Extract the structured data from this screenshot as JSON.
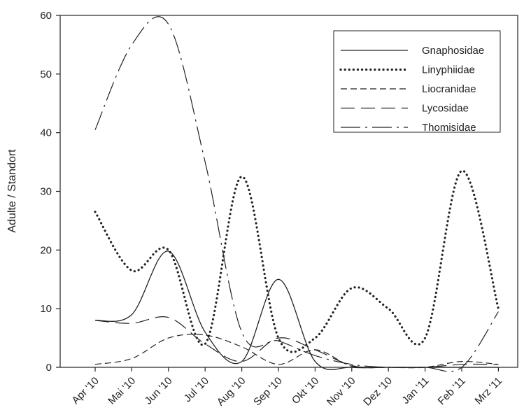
{
  "chart_data": {
    "type": "line",
    "title": "",
    "xlabel": "",
    "ylabel": "Adulte / Standort",
    "ylim": [
      0,
      60
    ],
    "yticks": [
      0,
      10,
      20,
      30,
      40,
      50,
      60
    ],
    "grid": false,
    "legend_position": "top-right",
    "categories": [
      "Apr '10",
      "Mai '10",
      "Jun '10",
      "Jul '10",
      "Aug '10",
      "Sep '10",
      "Okt '10",
      "Nov '10",
      "Dez '10",
      "Jan '11",
      "Feb '11",
      "Mrz '11"
    ],
    "series": [
      {
        "name": "Gnaphosidae",
        "style": "solid",
        "values": [
          8,
          9,
          19.8,
          6,
          1,
          15,
          1,
          0,
          0,
          0,
          0,
          0
        ]
      },
      {
        "name": "Linyphiidae",
        "style": "dotted",
        "values": [
          26.5,
          16.5,
          20,
          4,
          32.5,
          5,
          5,
          13.5,
          10,
          5,
          33.5,
          10
        ]
      },
      {
        "name": "Liocranidae",
        "style": "short-dash",
        "values": [
          0.5,
          1.5,
          5,
          5.5,
          3.5,
          0.5,
          3,
          0.2,
          0,
          0,
          1,
          0.5
        ]
      },
      {
        "name": "Lycosidae",
        "style": "long-dash",
        "values": [
          8,
          7.5,
          8.5,
          4,
          1,
          5,
          3,
          0.3,
          0,
          0,
          0.5,
          0.5
        ]
      },
      {
        "name": "Thomisidae",
        "style": "dash-dot",
        "values": [
          40.5,
          55,
          58.5,
          35,
          6,
          4.5,
          2,
          0.5,
          0,
          0,
          0,
          9.5
        ]
      }
    ]
  }
}
